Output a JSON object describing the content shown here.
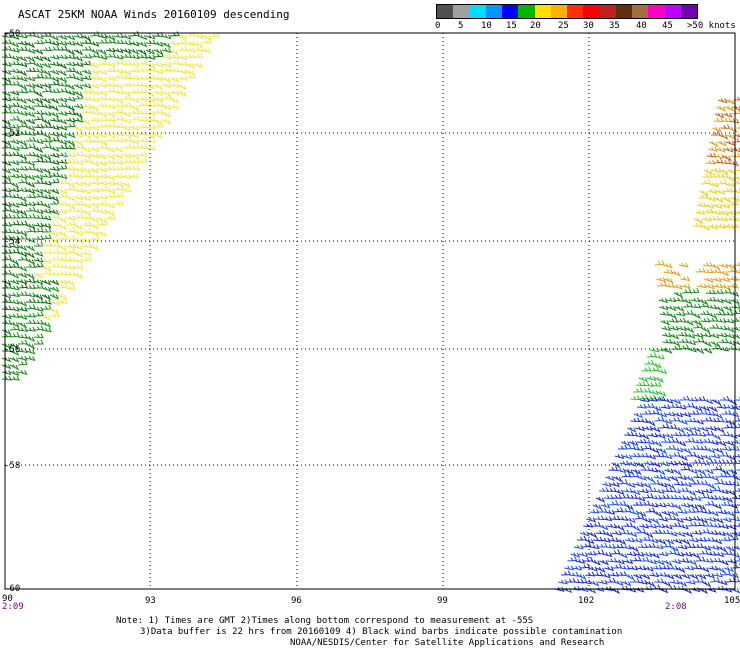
{
  "title": "ASCAT 25KM NOAA Winds 20160109 descending",
  "legend": {
    "labels": [
      "0",
      "5",
      "10",
      "15",
      "20",
      "25",
      "30",
      "35",
      "40",
      "45",
      ">50 knots"
    ],
    "colors": [
      "#505050",
      "#a0a0a0",
      "#00dcff",
      "#0096ff",
      "#0000ff",
      "#00b400",
      "#ffe000",
      "#ffb000",
      "#ff3000",
      "#ff0000",
      "#c02020",
      "#603010",
      "#a07040",
      "#ff00c8",
      "#c000ff",
      "#7000b0"
    ]
  },
  "axes": {
    "x_ticks": [
      "90",
      "93",
      "96",
      "99",
      "102",
      "105"
    ],
    "y_ticks": [
      "-50",
      "-52",
      "-54",
      "-56",
      "-58",
      "-60"
    ]
  },
  "times": {
    "left": "2:09",
    "right": "2:08"
  },
  "note": {
    "line1": "Note: 1) Times are GMT 2)Times along bottom correspond to measurement at -55S",
    "line2": "3)Data buffer is 22 hrs from 20160109 4) Black wind barbs indicate possible contamination"
  },
  "credit": "NOAA/NESDIS/Center for Satellite Applications and Research"
}
